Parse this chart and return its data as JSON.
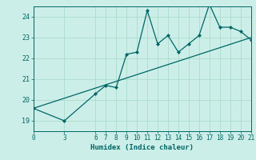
{
  "title": "",
  "xlabel": "Humidex (Indice chaleur)",
  "ylabel": "",
  "bg_color": "#cceee8",
  "grid_color": "#aaddcc",
  "line_color": "#006666",
  "xlim": [
    0,
    21
  ],
  "ylim": [
    18.5,
    24.5
  ],
  "yticks": [
    19,
    20,
    21,
    22,
    23,
    24
  ],
  "xticks": [
    0,
    3,
    6,
    7,
    8,
    9,
    10,
    11,
    12,
    13,
    14,
    15,
    16,
    17,
    18,
    19,
    20,
    21
  ],
  "data_x": [
    0,
    3,
    6,
    7,
    8,
    9,
    10,
    11,
    12,
    13,
    14,
    15,
    16,
    17,
    18,
    19,
    20,
    21
  ],
  "data_y": [
    19.6,
    19.0,
    20.3,
    20.7,
    20.6,
    22.2,
    22.3,
    24.3,
    22.7,
    23.1,
    22.3,
    22.7,
    23.1,
    24.6,
    23.5,
    23.5,
    23.3,
    22.9
  ],
  "trend_x": [
    0,
    21
  ],
  "trend_y": [
    19.6,
    23.0
  ],
  "figsize": [
    3.2,
    2.0
  ],
  "dpi": 100
}
